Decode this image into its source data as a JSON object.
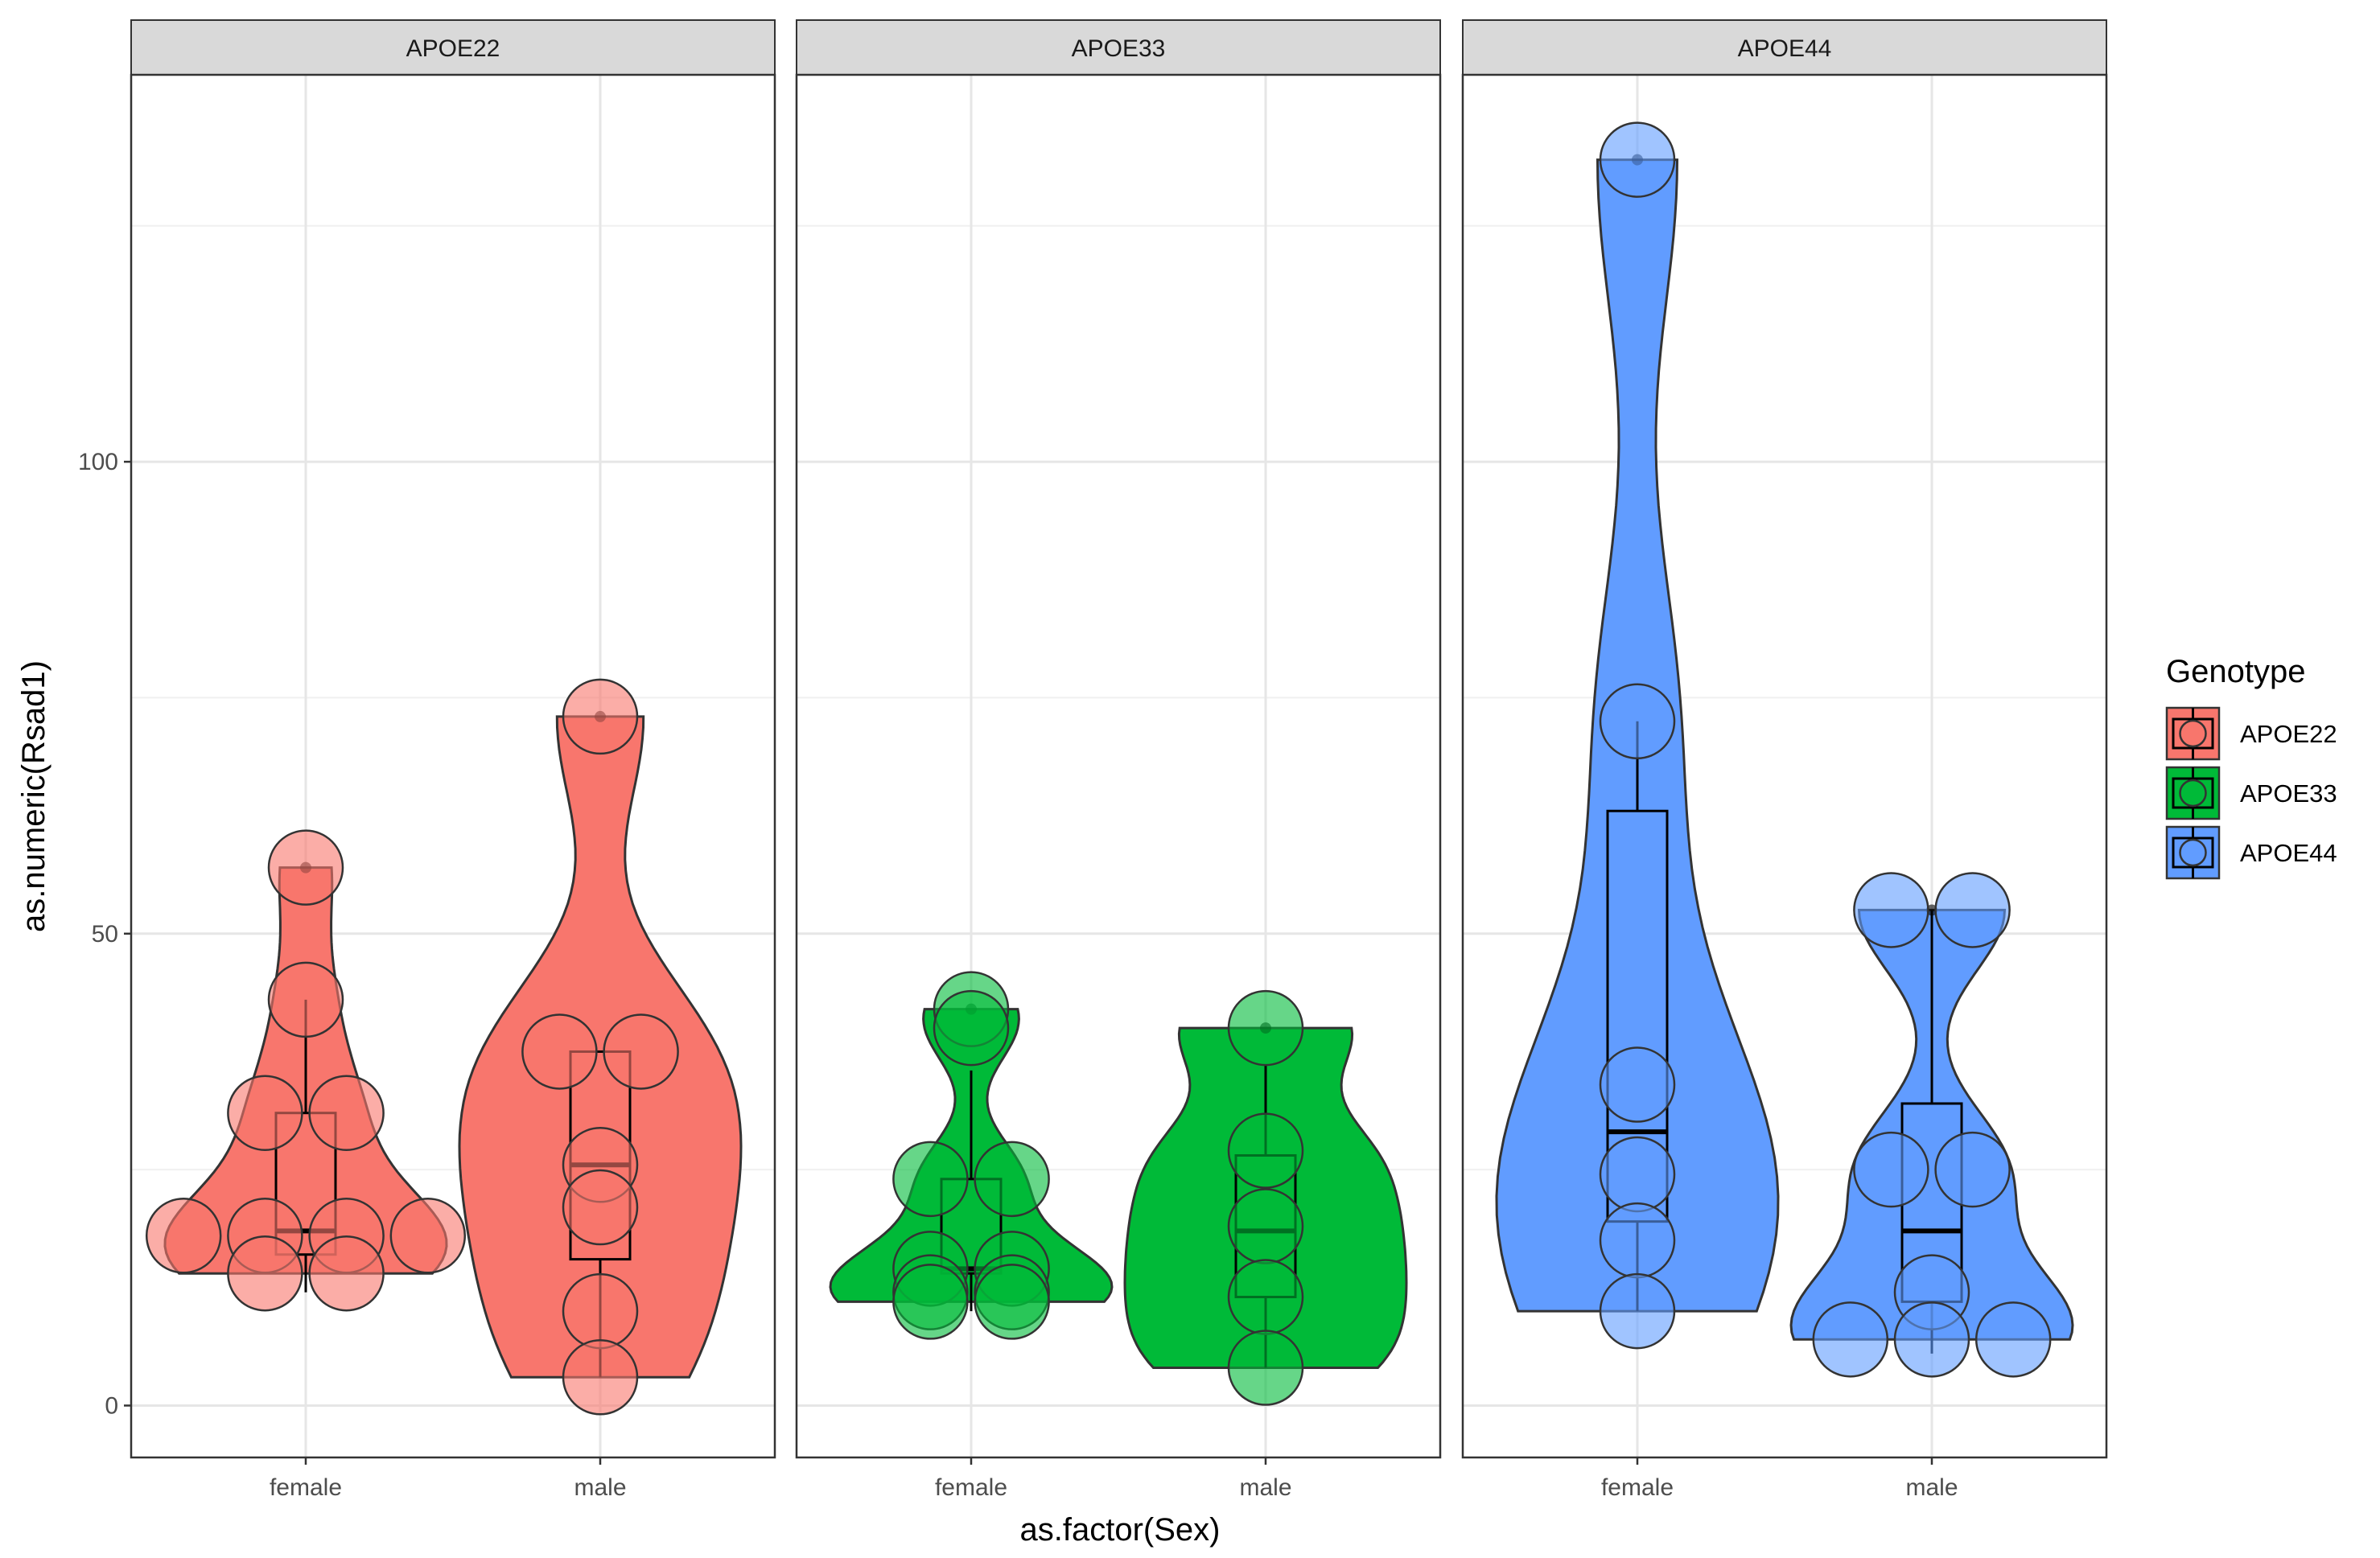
{
  "chart_data": {
    "type": "violin",
    "xlabel": "as.factor(Sex)",
    "ylabel": "as.numeric(Rsad1)",
    "ylim": [
      -5.5,
      141
    ],
    "yticks": [
      0,
      50,
      100
    ],
    "ytick_labels": [
      "0",
      "50",
      "100"
    ],
    "categories": [
      "female",
      "male"
    ],
    "legend": {
      "title": "Genotype",
      "position": "right",
      "entries": [
        "APOE22",
        "APOE33",
        "APOE44"
      ]
    },
    "grid": true,
    "colors": {
      "APOE22": "#F8766D",
      "APOE33": "#00BA38",
      "APOE44": "#619CFF"
    },
    "panels": [
      {
        "title": "APOE22",
        "groups": [
          {
            "sex": "female",
            "points": [
              57,
              43,
              31,
              31,
              18,
              18,
              18,
              18,
              14,
              14
            ],
            "box": {
              "q1": 16,
              "median": 18.5,
              "q3": 31,
              "whisker_low": 12,
              "whisker_high": 43
            }
          },
          {
            "sex": "male",
            "points": [
              73,
              37.5,
              37.5,
              25.5,
              21,
              10,
              3
            ],
            "box": {
              "q1": 15.5,
              "median": 25.5,
              "q3": 37.5,
              "whisker_low": 3,
              "whisker_high": 37.5
            }
          }
        ]
      },
      {
        "title": "APOE33",
        "groups": [
          {
            "sex": "female",
            "points": [
              42,
              40,
              24,
              24,
              14.5,
              14.5,
              12,
              12,
              11,
              11
            ],
            "box": {
              "q1": 14,
              "median": 14.5,
              "q3": 24,
              "whisker_low": 10,
              "whisker_high": 35.5
            }
          },
          {
            "sex": "male",
            "points": [
              40,
              27,
              19,
              11.5,
              4
            ],
            "box": {
              "q1": 11.5,
              "median": 18.5,
              "q3": 26.5,
              "whisker_low": 4,
              "whisker_high": 36
            }
          }
        ]
      },
      {
        "title": "APOE44",
        "groups": [
          {
            "sex": "female",
            "points": [
              132,
              72.5,
              34,
              24.5,
              17.5,
              10
            ],
            "box": {
              "q1": 19.5,
              "median": 29,
              "q3": 63,
              "whisker_low": 10,
              "whisker_high": 72.5
            }
          },
          {
            "sex": "male",
            "points": [
              52.5,
              52.5,
              25,
              25,
              12,
              7,
              7,
              7
            ],
            "box": {
              "q1": 11,
              "median": 18.5,
              "q3": 32,
              "whisker_low": 5.5,
              "whisker_high": 52.5
            }
          }
        ]
      }
    ]
  }
}
